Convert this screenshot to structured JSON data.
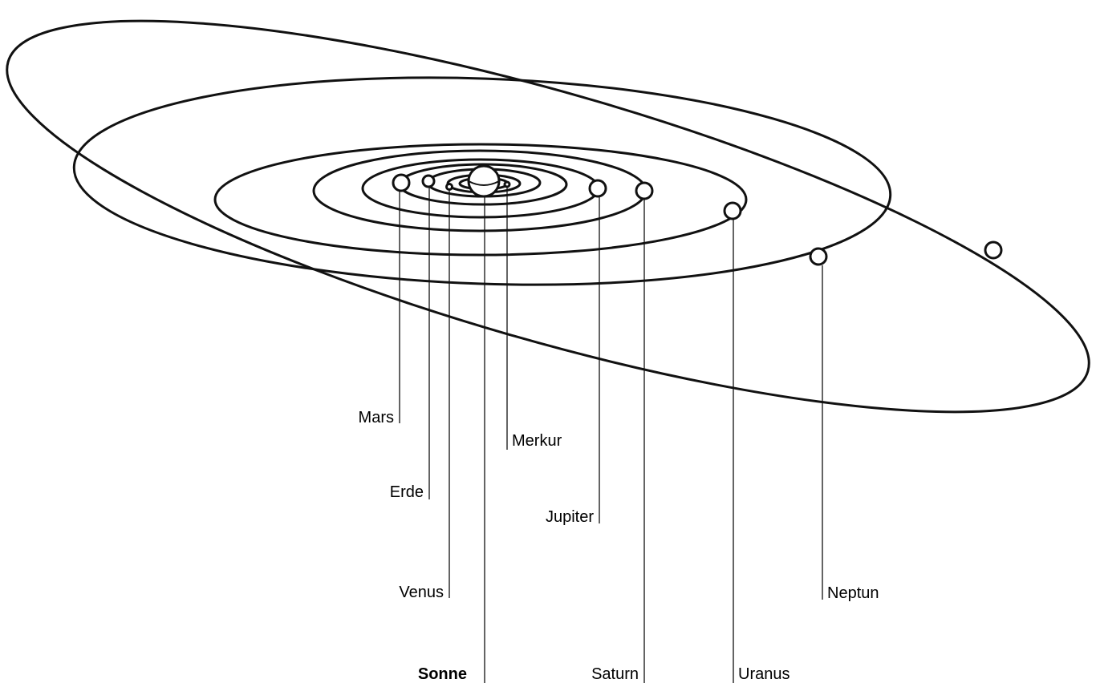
{
  "sun": {
    "label": "Sonne"
  },
  "planets": [
    {
      "label": "Merkur"
    },
    {
      "label": "Venus"
    },
    {
      "label": "Erde"
    },
    {
      "label": "Mars"
    },
    {
      "label": "Jupiter"
    },
    {
      "label": "Saturn"
    },
    {
      "label": "Uranus"
    },
    {
      "label": "Neptun"
    }
  ]
}
